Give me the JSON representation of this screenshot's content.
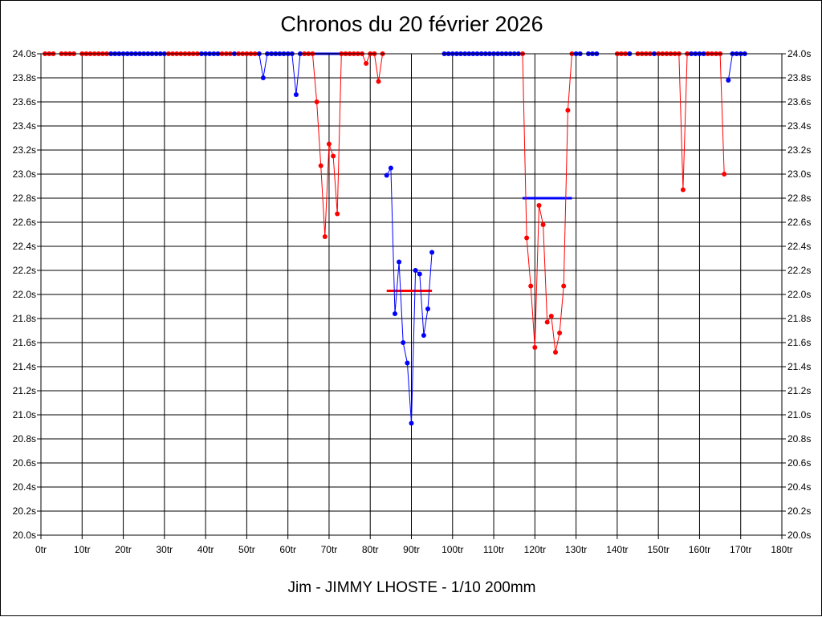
{
  "chart_data": {
    "type": "line",
    "title": "Chronos du 20 février 2026",
    "subtitle": "Jim - JIMMY LHOSTE - 1/10 200mm",
    "xlim": [
      0,
      180
    ],
    "ylim": [
      20.0,
      24.0
    ],
    "x_ticks": [
      "0tr",
      "10tr",
      "20tr",
      "30tr",
      "40tr",
      "50tr",
      "60tr",
      "70tr",
      "80tr",
      "90tr",
      "100tr",
      "110tr",
      "120tr",
      "130tr",
      "140tr",
      "150tr",
      "160tr",
      "170tr",
      "180tr"
    ],
    "y_ticks": [
      "20.0s",
      "20.2s",
      "20.4s",
      "20.6s",
      "20.8s",
      "21.0s",
      "21.2s",
      "21.4s",
      "21.6s",
      "21.8s",
      "22.0s",
      "22.2s",
      "22.4s",
      "22.6s",
      "22.8s",
      "23.0s",
      "23.2s",
      "23.4s",
      "23.6s",
      "23.8s",
      "24.0s"
    ],
    "grid": true,
    "colors": {
      "red": "#ff0000",
      "blue": "#0000ff"
    },
    "series": [
      {
        "color": "red",
        "points": [
          [
            1,
            24
          ],
          [
            2,
            24
          ],
          [
            3,
            24
          ]
        ]
      },
      {
        "color": "red",
        "points": [
          [
            5,
            24
          ],
          [
            6,
            24
          ],
          [
            7,
            24
          ],
          [
            8,
            24
          ]
        ]
      },
      {
        "color": "red",
        "points": [
          [
            10,
            24
          ],
          [
            11,
            24
          ],
          [
            12,
            24
          ],
          [
            13,
            24
          ],
          [
            14,
            24
          ],
          [
            15,
            24
          ],
          [
            16,
            24
          ]
        ]
      },
      {
        "color": "blue",
        "points": [
          [
            17,
            24
          ],
          [
            18,
            24
          ],
          [
            19,
            24
          ],
          [
            20,
            24
          ],
          [
            21,
            24
          ],
          [
            22,
            24
          ],
          [
            23,
            24
          ],
          [
            24,
            24
          ],
          [
            25,
            24
          ],
          [
            26,
            24
          ],
          [
            27,
            24
          ],
          [
            28,
            24
          ],
          [
            29,
            24
          ],
          [
            30,
            24
          ]
        ]
      },
      {
        "color": "red",
        "points": [
          [
            31,
            24
          ],
          [
            32,
            24
          ],
          [
            33,
            24
          ],
          [
            34,
            24
          ],
          [
            35,
            24
          ],
          [
            36,
            24
          ],
          [
            37,
            24
          ],
          [
            38,
            24
          ]
        ]
      },
      {
        "color": "blue",
        "points": [
          [
            39,
            24
          ],
          [
            40,
            24
          ],
          [
            41,
            24
          ],
          [
            42,
            24
          ],
          [
            43,
            24
          ]
        ]
      },
      {
        "color": "red",
        "points": [
          [
            44,
            24
          ],
          [
            45,
            24
          ],
          [
            46,
            24
          ]
        ]
      },
      {
        "color": "blue",
        "points": [
          [
            47,
            24
          ]
        ]
      },
      {
        "color": "red",
        "points": [
          [
            48,
            24
          ],
          [
            49,
            24
          ],
          [
            50,
            24
          ],
          [
            51,
            24
          ],
          [
            52,
            24
          ]
        ]
      },
      {
        "color": "blue",
        "points": [
          [
            53,
            24
          ],
          [
            54,
            23.8
          ],
          [
            55,
            24
          ],
          [
            56,
            24
          ],
          [
            57,
            24
          ],
          [
            58,
            24
          ],
          [
            59,
            24
          ],
          [
            60,
            24
          ],
          [
            61,
            24
          ],
          [
            62,
            23.66
          ],
          [
            63,
            24
          ]
        ]
      },
      {
        "color": "red",
        "points": [
          [
            64,
            24
          ],
          [
            65,
            24
          ],
          [
            66,
            24
          ],
          [
            67,
            23.6
          ],
          [
            68,
            23.07
          ],
          [
            69,
            22.48
          ],
          [
            70,
            23.25
          ],
          [
            71,
            23.15
          ],
          [
            72,
            22.67
          ],
          [
            73,
            24
          ],
          [
            74,
            24
          ],
          [
            75,
            24
          ],
          [
            76,
            24
          ],
          [
            77,
            24
          ],
          [
            78,
            24
          ],
          [
            79,
            23.92
          ],
          [
            80,
            24
          ],
          [
            81,
            24
          ],
          [
            82,
            23.77
          ],
          [
            83,
            24
          ]
        ]
      },
      {
        "color": "blue",
        "points": [
          [
            84,
            22.99
          ],
          [
            85,
            23.05
          ],
          [
            86,
            21.84
          ],
          [
            87,
            22.27
          ],
          [
            88,
            21.6
          ],
          [
            89,
            21.43
          ],
          [
            90,
            20.93
          ],
          [
            91,
            22.2
          ],
          [
            92,
            22.17
          ],
          [
            93,
            21.66
          ],
          [
            94,
            21.88
          ],
          [
            95,
            22.35
          ]
        ]
      },
      {
        "color": "blue",
        "points": [
          [
            98,
            24
          ],
          [
            99,
            24
          ],
          [
            100,
            24
          ],
          [
            101,
            24
          ],
          [
            102,
            24
          ],
          [
            103,
            24
          ],
          [
            104,
            24
          ],
          [
            105,
            24
          ],
          [
            106,
            24
          ],
          [
            107,
            24
          ],
          [
            108,
            24
          ],
          [
            109,
            24
          ],
          [
            110,
            24
          ],
          [
            111,
            24
          ],
          [
            112,
            24
          ],
          [
            113,
            24
          ],
          [
            114,
            24
          ],
          [
            115,
            24
          ],
          [
            116,
            24
          ]
        ]
      },
      {
        "color": "red",
        "points": [
          [
            117,
            24
          ],
          [
            118,
            22.47
          ],
          [
            119,
            22.07
          ],
          [
            120,
            21.56
          ],
          [
            121,
            22.74
          ],
          [
            122,
            22.58
          ],
          [
            123,
            21.77
          ],
          [
            124,
            21.82
          ],
          [
            125,
            21.52
          ],
          [
            126,
            21.68
          ],
          [
            127,
            22.07
          ],
          [
            128,
            23.53
          ],
          [
            129,
            24
          ]
        ]
      },
      {
        "color": "blue",
        "points": [
          [
            130,
            24
          ],
          [
            131,
            24
          ],
          [
            133,
            24
          ],
          [
            134,
            24
          ],
          [
            135,
            24
          ]
        ]
      },
      {
        "color": "red",
        "points": [
          [
            140,
            24
          ],
          [
            141,
            24
          ],
          [
            142,
            24
          ]
        ]
      },
      {
        "color": "blue",
        "points": [
          [
            143,
            24
          ]
        ]
      },
      {
        "color": "red",
        "points": [
          [
            145,
            24
          ],
          [
            146,
            24
          ],
          [
            147,
            24
          ],
          [
            148,
            24
          ]
        ]
      },
      {
        "color": "blue",
        "points": [
          [
            149,
            24
          ]
        ]
      },
      {
        "color": "red",
        "points": [
          [
            150,
            24
          ],
          [
            151,
            24
          ],
          [
            152,
            24
          ],
          [
            153,
            24
          ],
          [
            154,
            24
          ],
          [
            155,
            24
          ],
          [
            156,
            22.87
          ],
          [
            157,
            24
          ]
        ]
      },
      {
        "color": "blue",
        "points": [
          [
            158,
            24
          ],
          [
            159,
            24
          ],
          [
            160,
            24
          ],
          [
            161,
            24
          ]
        ]
      },
      {
        "color": "red",
        "points": [
          [
            162,
            24
          ],
          [
            163,
            24
          ],
          [
            164,
            24
          ],
          [
            165,
            24
          ],
          [
            166,
            23.0
          ]
        ]
      },
      {
        "color": "blue",
        "points": [
          [
            167,
            23.78
          ],
          [
            168,
            24
          ],
          [
            169,
            24
          ],
          [
            170,
            24
          ],
          [
            171,
            24
          ]
        ]
      }
    ],
    "reference_lines": [
      {
        "color": "blue",
        "y": 24.0,
        "x_start": 64,
        "x_end": 73
      },
      {
        "color": "red",
        "y": 22.03,
        "x_start": 84,
        "x_end": 95
      },
      {
        "color": "blue",
        "y": 22.8,
        "x_start": 117,
        "x_end": 129
      }
    ]
  }
}
